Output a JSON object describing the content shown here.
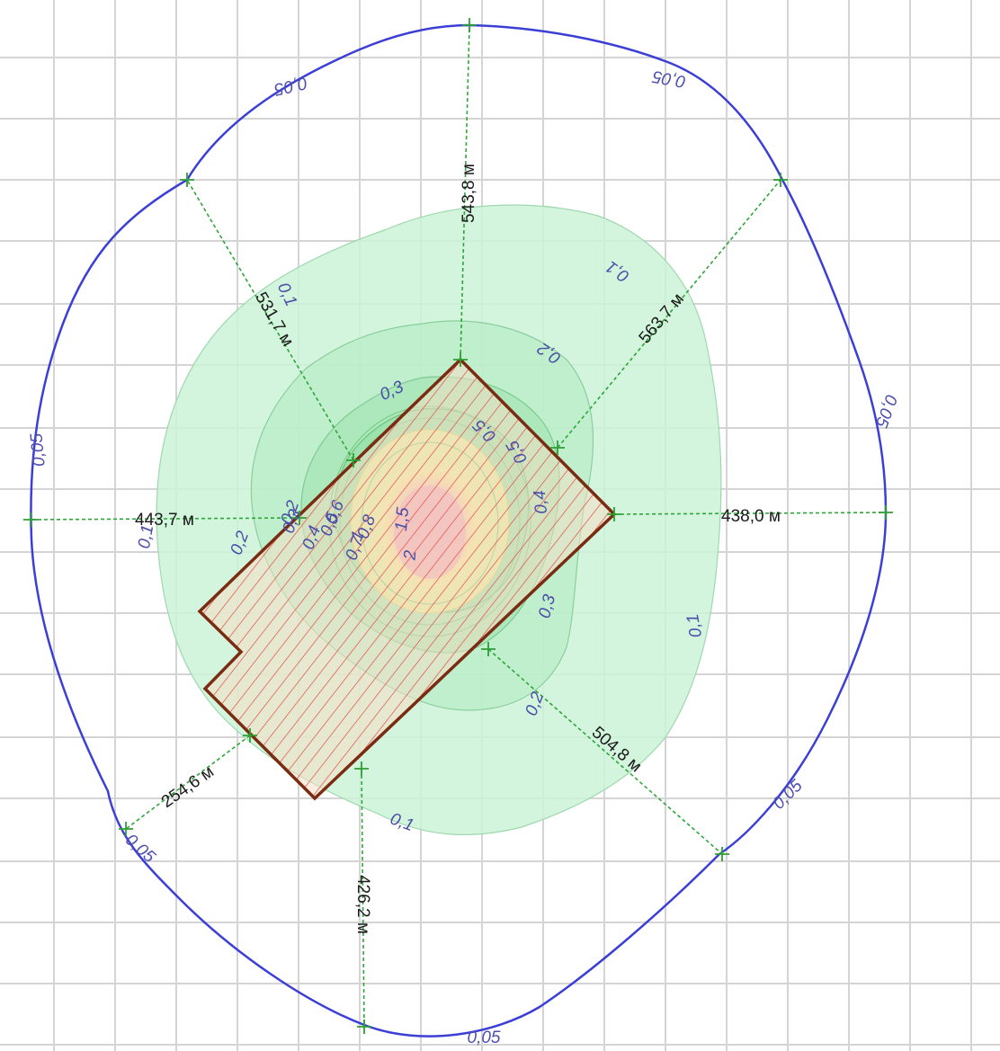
{
  "colors": {
    "boundary": "#3c3fd6",
    "site_outline": "#7a2b12",
    "site_hatch": "#e24a4a",
    "ray": "#2ea63a",
    "grid": "#d4d4d4",
    "zone_fill": "#bfeecb"
  },
  "boundary_labels": [
    "0,05",
    "0,05",
    "0,05",
    "0,05",
    "0,05",
    "0,05",
    "0,05"
  ],
  "isoline_labels": [
    "0,1",
    "0,1",
    "0,1",
    "0,1",
    "0,1",
    "0,2",
    "0,2",
    "0,2",
    "0,2",
    "0,3",
    "0,3",
    "0,3",
    "0,4",
    "0,4",
    "0,5",
    "0,5",
    "0,5",
    "0,6",
    "0,7",
    "0,8",
    "1",
    "1,5",
    "2"
  ],
  "distances": {
    "north": "543,8 м",
    "north_west": "531,7 м",
    "north_east": "563,7 м",
    "west": "443,7 м",
    "east": "438,0 м",
    "south_west": "254,6 м",
    "south": "426,2 м",
    "south_east": "504,8 м"
  }
}
